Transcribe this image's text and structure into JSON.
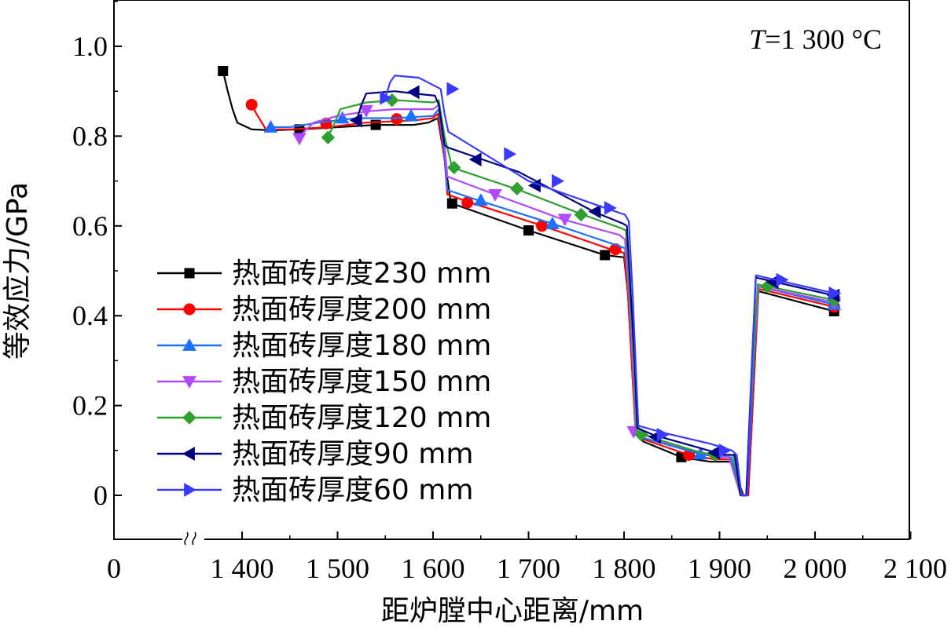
{
  "chart_data": {
    "type": "line",
    "xlabel": "距炉膛中心距离/mm",
    "ylabel": "等效应力/GPa",
    "annotation": "T=1 300 °C",
    "annotation_var": "T",
    "annotation_rest": "=1 300 °C",
    "xlim": [
      1360,
      2100
    ],
    "ylim": [
      -0.1,
      1.1
    ],
    "axis_break": true,
    "x_ticks": [
      {
        "value": 1400,
        "label": "1 400"
      },
      {
        "value": 1500,
        "label": "1 500"
      },
      {
        "value": 1600,
        "label": "1 600"
      },
      {
        "value": 1700,
        "label": "1 700"
      },
      {
        "value": 1800,
        "label": "1 800"
      },
      {
        "value": 1900,
        "label": "1 900"
      },
      {
        "value": 2000,
        "label": "2 000"
      },
      {
        "value": 2100,
        "label": "2 100"
      }
    ],
    "x_zero_label": "0",
    "y_ticks": [
      {
        "value": 0,
        "label": "0"
      },
      {
        "value": 0.2,
        "label": "0.2"
      },
      {
        "value": 0.4,
        "label": "0.4"
      },
      {
        "value": 0.6,
        "label": "0.6"
      },
      {
        "value": 0.8,
        "label": "0.8"
      },
      {
        "value": 1.0,
        "label": "1.0"
      }
    ],
    "legend_position": "lower-left",
    "grid": false,
    "series": [
      {
        "name": "热面砖厚度230 mm",
        "color": "#000000",
        "marker": "square",
        "points": [
          [
            1380,
            0.945
          ],
          [
            1385,
            0.9
          ],
          [
            1390,
            0.86
          ],
          [
            1395,
            0.83
          ],
          [
            1410,
            0.815
          ],
          [
            1430,
            0.813
          ],
          [
            1460,
            0.815
          ],
          [
            1500,
            0.82
          ],
          [
            1540,
            0.825
          ],
          [
            1580,
            0.825
          ],
          [
            1595,
            0.83
          ],
          [
            1605,
            0.84
          ],
          [
            1612,
            0.75
          ],
          [
            1618,
            0.66
          ],
          [
            1620,
            0.65
          ],
          [
            1700,
            0.59
          ],
          [
            1780,
            0.535
          ],
          [
            1800,
            0.53
          ],
          [
            1804,
            0.45
          ],
          [
            1808,
            0.3
          ],
          [
            1812,
            0.15
          ],
          [
            1820,
            0.12
          ],
          [
            1860,
            0.085
          ],
          [
            1890,
            0.075
          ],
          [
            1912,
            0.075
          ],
          [
            1925,
            0.0
          ],
          [
            1930,
            0.0
          ],
          [
            1937,
            0.3
          ],
          [
            1940,
            0.455
          ],
          [
            2020,
            0.41
          ]
        ],
        "markers": [
          [
            1380,
            0.945
          ],
          [
            1460,
            0.815
          ],
          [
            1540,
            0.825
          ],
          [
            1620,
            0.65
          ],
          [
            1700,
            0.59
          ],
          [
            1780,
            0.535
          ],
          [
            1860,
            0.085
          ],
          [
            2020,
            0.41
          ]
        ]
      },
      {
        "name": "热面砖厚度200 mm",
        "color": "#ff0000",
        "marker": "circle",
        "points": [
          [
            1410,
            0.87
          ],
          [
            1415,
            0.85
          ],
          [
            1425,
            0.815
          ],
          [
            1450,
            0.815
          ],
          [
            1490,
            0.82
          ],
          [
            1530,
            0.83
          ],
          [
            1580,
            0.835
          ],
          [
            1600,
            0.84
          ],
          [
            1605,
            0.85
          ],
          [
            1612,
            0.75
          ],
          [
            1615,
            0.67
          ],
          [
            1635,
            0.655
          ],
          [
            1715,
            0.6
          ],
          [
            1790,
            0.545
          ],
          [
            1800,
            0.54
          ],
          [
            1804,
            0.45
          ],
          [
            1808,
            0.3
          ],
          [
            1812,
            0.14
          ],
          [
            1820,
            0.125
          ],
          [
            1868,
            0.09
          ],
          [
            1895,
            0.08
          ],
          [
            1912,
            0.08
          ],
          [
            1924,
            0.0
          ],
          [
            1930,
            0.0
          ],
          [
            1937,
            0.3
          ],
          [
            1941,
            0.46
          ],
          [
            2020,
            0.42
          ]
        ],
        "markers": [
          [
            1410,
            0.87
          ],
          [
            1488,
            0.828
          ],
          [
            1562,
            0.838
          ],
          [
            1636,
            0.652
          ],
          [
            1714,
            0.6
          ],
          [
            1791,
            0.548
          ],
          [
            1868,
            0.09
          ],
          [
            2020,
            0.42
          ]
        ]
      },
      {
        "name": "热面砖厚度180 mm",
        "color": "#1f6fff",
        "marker": "triangle-up",
        "points": [
          [
            1430,
            0.82
          ],
          [
            1450,
            0.82
          ],
          [
            1480,
            0.83
          ],
          [
            1520,
            0.84
          ],
          [
            1560,
            0.84
          ],
          [
            1600,
            0.845
          ],
          [
            1606,
            0.86
          ],
          [
            1612,
            0.76
          ],
          [
            1615,
            0.68
          ],
          [
            1650,
            0.655
          ],
          [
            1725,
            0.605
          ],
          [
            1795,
            0.555
          ],
          [
            1801,
            0.55
          ],
          [
            1805,
            0.45
          ],
          [
            1809,
            0.3
          ],
          [
            1813,
            0.14
          ],
          [
            1820,
            0.128
          ],
          [
            1880,
            0.092
          ],
          [
            1900,
            0.085
          ],
          [
            1912,
            0.085
          ],
          [
            1923,
            0.0
          ],
          [
            1929,
            0.0
          ],
          [
            1936,
            0.3
          ],
          [
            1941,
            0.465
          ],
          [
            2020,
            0.425
          ]
        ],
        "markers": [
          [
            1430,
            0.82
          ],
          [
            1505,
            0.84
          ],
          [
            1577,
            0.845
          ],
          [
            1650,
            0.657
          ],
          [
            1725,
            0.605
          ],
          [
            1880,
            0.092
          ],
          [
            2020,
            0.425
          ]
        ]
      },
      {
        "name": "热面砖厚度150 mm",
        "color": "#b04aff",
        "marker": "triangle-down",
        "points": [
          [
            1460,
            0.8
          ],
          [
            1475,
            0.83
          ],
          [
            1500,
            0.845
          ],
          [
            1530,
            0.855
          ],
          [
            1560,
            0.86
          ],
          [
            1600,
            0.86
          ],
          [
            1606,
            0.87
          ],
          [
            1612,
            0.78
          ],
          [
            1615,
            0.71
          ],
          [
            1665,
            0.67
          ],
          [
            1735,
            0.615
          ],
          [
            1795,
            0.58
          ],
          [
            1801,
            0.57
          ],
          [
            1805,
            0.45
          ],
          [
            1809,
            0.3
          ],
          [
            1812,
            0.145
          ],
          [
            1840,
            0.12
          ],
          [
            1890,
            0.09
          ],
          [
            1910,
            0.085
          ],
          [
            1922,
            0.0
          ],
          [
            1928,
            0.0
          ],
          [
            1935,
            0.3
          ],
          [
            1941,
            0.465
          ],
          [
            2020,
            0.43
          ]
        ],
        "markers": [
          [
            1460,
            0.795
          ],
          [
            1530,
            0.857
          ],
          [
            1665,
            0.67
          ],
          [
            1738,
            0.615
          ],
          [
            1810,
            0.142
          ],
          [
            2020,
            0.43
          ]
        ]
      },
      {
        "name": "热面砖厚度120 mm",
        "color": "#2f9f2f",
        "marker": "diamond",
        "points": [
          [
            1490,
            0.8
          ],
          [
            1495,
            0.82
          ],
          [
            1503,
            0.86
          ],
          [
            1530,
            0.875
          ],
          [
            1560,
            0.88
          ],
          [
            1600,
            0.875
          ],
          [
            1606,
            0.88
          ],
          [
            1612,
            0.8
          ],
          [
            1620,
            0.73
          ],
          [
            1690,
            0.68
          ],
          [
            1757,
            0.625
          ],
          [
            1797,
            0.595
          ],
          [
            1802,
            0.59
          ],
          [
            1806,
            0.45
          ],
          [
            1810,
            0.3
          ],
          [
            1813,
            0.145
          ],
          [
            1820,
            0.135
          ],
          [
            1880,
            0.095
          ],
          [
            1900,
            0.09
          ],
          [
            1914,
            0.09
          ],
          [
            1922,
            0.0
          ],
          [
            1928,
            0.0
          ],
          [
            1935,
            0.3
          ],
          [
            1940,
            0.47
          ],
          [
            2020,
            0.435
          ]
        ],
        "markers": [
          [
            1490,
            0.797
          ],
          [
            1557,
            0.88
          ],
          [
            1622,
            0.73
          ],
          [
            1688,
            0.683
          ],
          [
            1755,
            0.625
          ],
          [
            1818,
            0.135
          ],
          [
            1895,
            0.09
          ],
          [
            1950,
            0.465
          ],
          [
            2020,
            0.435
          ]
        ]
      },
      {
        "name": "热面砖厚度90 mm",
        "color": "#000080",
        "marker": "triangle-left",
        "points": [
          [
            1520,
            0.835
          ],
          [
            1525,
            0.87
          ],
          [
            1530,
            0.895
          ],
          [
            1560,
            0.9
          ],
          [
            1580,
            0.895
          ],
          [
            1602,
            0.89
          ],
          [
            1606,
            0.87
          ],
          [
            1612,
            0.78
          ],
          [
            1615,
            0.775
          ],
          [
            1690,
            0.72
          ],
          [
            1770,
            0.63
          ],
          [
            1799,
            0.605
          ],
          [
            1803,
            0.6
          ],
          [
            1807,
            0.45
          ],
          [
            1811,
            0.3
          ],
          [
            1814,
            0.15
          ],
          [
            1830,
            0.135
          ],
          [
            1880,
            0.105
          ],
          [
            1905,
            0.09
          ],
          [
            1916,
            0.09
          ],
          [
            1922,
            0.0
          ],
          [
            1928,
            0.0
          ],
          [
            1934,
            0.3
          ],
          [
            1938,
            0.485
          ],
          [
            2020,
            0.445
          ]
        ],
        "markers": [
          [
            1520,
            0.835
          ],
          [
            1580,
            0.898
          ],
          [
            1645,
            0.748
          ],
          [
            1707,
            0.69
          ],
          [
            1770,
            0.632
          ],
          [
            1833,
            0.13
          ],
          [
            1895,
            0.095
          ],
          [
            1956,
            0.475
          ],
          [
            2020,
            0.445
          ]
        ]
      },
      {
        "name": "热面砖厚度60 mm",
        "color": "#3b3bff",
        "marker": "triangle-right",
        "points": [
          [
            1550,
            0.885
          ],
          [
            1555,
            0.92
          ],
          [
            1560,
            0.935
          ],
          [
            1585,
            0.93
          ],
          [
            1608,
            0.905
          ],
          [
            1612,
            0.85
          ],
          [
            1616,
            0.81
          ],
          [
            1700,
            0.7
          ],
          [
            1780,
            0.64
          ],
          [
            1801,
            0.625
          ],
          [
            1805,
            0.61
          ],
          [
            1809,
            0.45
          ],
          [
            1812,
            0.3
          ],
          [
            1815,
            0.155
          ],
          [
            1840,
            0.14
          ],
          [
            1890,
            0.115
          ],
          [
            1913,
            0.1
          ],
          [
            1918,
            0.09
          ],
          [
            1923,
            0.0
          ],
          [
            1929,
            0.0
          ],
          [
            1934,
            0.3
          ],
          [
            1938,
            0.49
          ],
          [
            2020,
            0.45
          ]
        ],
        "markers": [
          [
            1550,
            0.885
          ],
          [
            1620,
            0.905
          ],
          [
            1680,
            0.76
          ],
          [
            1730,
            0.7
          ],
          [
            1785,
            0.64
          ],
          [
            1840,
            0.135
          ],
          [
            1905,
            0.1
          ],
          [
            1965,
            0.48
          ],
          [
            2020,
            0.45
          ]
        ]
      }
    ]
  }
}
